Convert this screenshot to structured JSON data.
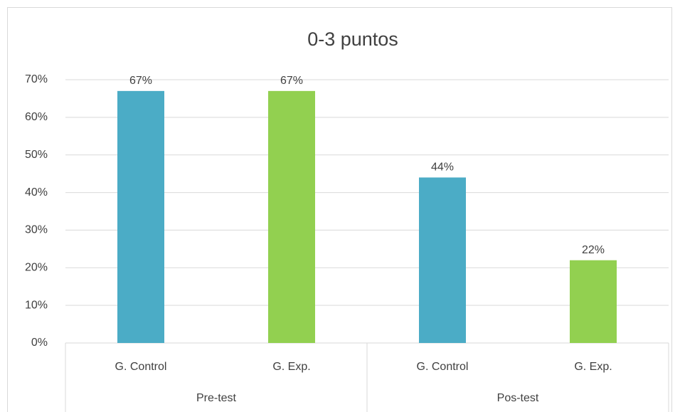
{
  "chart_data": {
    "type": "bar",
    "title": "0-3 puntos",
    "groups": [
      {
        "name": "Pre-test",
        "categories": [
          "G. Control",
          "G. Exp."
        ],
        "values": [
          67,
          67
        ],
        "value_labels": [
          "67%",
          "67%"
        ]
      },
      {
        "name": "Pos-test",
        "categories": [
          "G. Control",
          "G. Exp."
        ],
        "values": [
          44,
          22
        ],
        "value_labels": [
          "44%",
          "22%"
        ]
      }
    ],
    "colors": [
      "#4bacc6",
      "#92d050"
    ],
    "ylim": [
      0,
      70
    ],
    "yticks": [
      {
        "value": 0,
        "label": "0%"
      },
      {
        "value": 10,
        "label": "10%"
      },
      {
        "value": 20,
        "label": "20%"
      },
      {
        "value": 30,
        "label": "30%"
      },
      {
        "value": 40,
        "label": "40%"
      },
      {
        "value": 50,
        "label": "50%"
      },
      {
        "value": 60,
        "label": "60%"
      },
      {
        "value": 70,
        "label": "70%"
      }
    ],
    "grid": true
  }
}
